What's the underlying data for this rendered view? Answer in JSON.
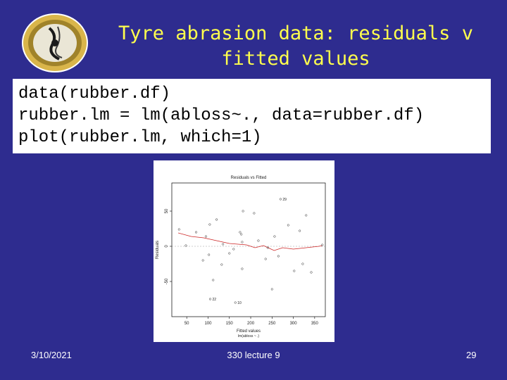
{
  "slide": {
    "title_line1": "Tyre abrasion data: residuals v",
    "title_line2": "fitted values",
    "code": [
      "data(rubber.df)",
      "rubber.lm = lm(abloss~., data=rubber.df)",
      "plot(rubber.lm, which=1)"
    ],
    "footer_date": "3/10/2021",
    "footer_center": "330 lecture 9",
    "footer_page": "29"
  },
  "colors": {
    "background": "#2e2c8f",
    "title": "#ffff4d",
    "smoother": "#cc2222"
  },
  "chart_data": {
    "type": "scatter",
    "title": "Residuals vs Fitted",
    "xlabel": "Fitted values",
    "sublabel": "lm(abloss ~ .)",
    "ylabel": "Residuals",
    "xlim": [
      15,
      375
    ],
    "ylim": [
      -100,
      90
    ],
    "xticks": [
      50,
      100,
      150,
      200,
      250,
      300,
      350
    ],
    "yticks": [
      50,
      0,
      -50
    ],
    "points": [
      {
        "x": 270,
        "y": 67,
        "label": "29"
      },
      {
        "x": 182,
        "y": 50
      },
      {
        "x": 208,
        "y": 47
      },
      {
        "x": 330,
        "y": 44
      },
      {
        "x": 120,
        "y": 38
      },
      {
        "x": 288,
        "y": 30
      },
      {
        "x": 104,
        "y": 31
      },
      {
        "x": 32,
        "y": 24
      },
      {
        "x": 175,
        "y": 20
      },
      {
        "x": 315,
        "y": 22
      },
      {
        "x": 72,
        "y": 20
      },
      {
        "x": 95,
        "y": 14
      },
      {
        "x": 178,
        "y": 17
      },
      {
        "x": 256,
        "y": 14
      },
      {
        "x": 218,
        "y": 8
      },
      {
        "x": 180,
        "y": 6
      },
      {
        "x": 368,
        "y": 2
      },
      {
        "x": 48,
        "y": 1
      },
      {
        "x": 135,
        "y": 3
      },
      {
        "x": 240,
        "y": -2
      },
      {
        "x": 160,
        "y": -4
      },
      {
        "x": 150,
        "y": -10
      },
      {
        "x": 102,
        "y": -12
      },
      {
        "x": 265,
        "y": -14
      },
      {
        "x": 235,
        "y": -18
      },
      {
        "x": 88,
        "y": -20
      },
      {
        "x": 322,
        "y": -25
      },
      {
        "x": 132,
        "y": -26
      },
      {
        "x": 180,
        "y": -32
      },
      {
        "x": 302,
        "y": -35
      },
      {
        "x": 342,
        "y": -37
      },
      {
        "x": 112,
        "y": -48
      },
      {
        "x": 250,
        "y": -61
      },
      {
        "x": 105,
        "y": -75,
        "label": "22"
      },
      {
        "x": 164,
        "y": -80,
        "label": "10"
      }
    ],
    "smoother": [
      [
        30,
        19
      ],
      [
        60,
        14
      ],
      [
        90,
        12
      ],
      [
        120,
        8
      ],
      [
        150,
        4
      ],
      [
        170,
        3
      ],
      [
        190,
        2
      ],
      [
        210,
        -2
      ],
      [
        230,
        1
      ],
      [
        255,
        -6
      ],
      [
        275,
        -2
      ],
      [
        300,
        -4
      ],
      [
        330,
        -2
      ],
      [
        360,
        0
      ],
      [
        368,
        1
      ]
    ]
  }
}
